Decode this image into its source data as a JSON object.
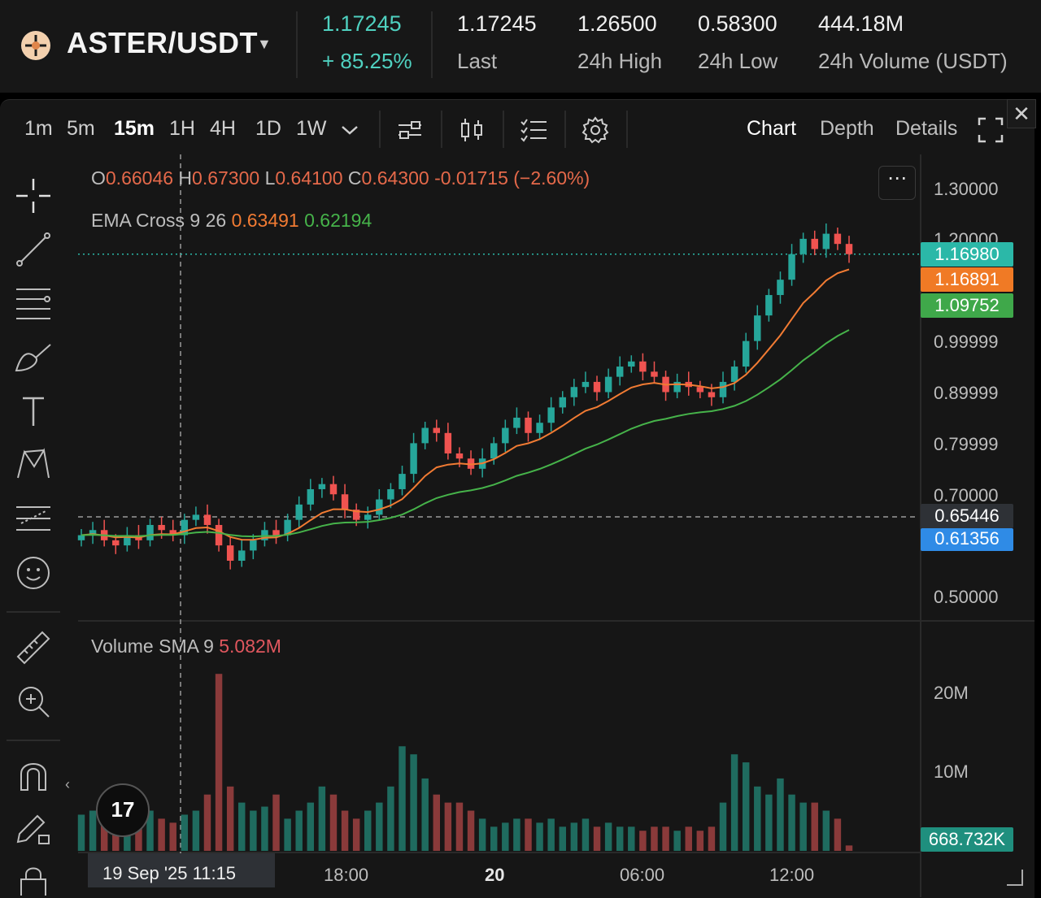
{
  "header": {
    "pair": "ASTER/USDT",
    "price": "1.17245",
    "change": "+ 85.25%",
    "stats": [
      {
        "value": "1.17245",
        "label": "Last"
      },
      {
        "value": "1.26500",
        "label": "24h High"
      },
      {
        "value": "0.58300",
        "label": "24h Low"
      },
      {
        "value": "444.18M",
        "label": "24h Volume (USDT)"
      }
    ]
  },
  "toolbar": {
    "timeframes": [
      "1m",
      "5m",
      "15m",
      "1H",
      "4H",
      "1D",
      "1W"
    ],
    "active_timeframe": "15m",
    "views": [
      "Chart",
      "Depth",
      "Details"
    ],
    "active_view": "Chart",
    "close": "✕"
  },
  "legend": {
    "o_label": "O",
    "o": "0.66046",
    "h_label": "H",
    "h": "0.67300",
    "l_label": "L",
    "l": "0.64100",
    "c_label": "C",
    "c": "0.64300",
    "change": "-0.01715 (−2.60%)",
    "ema_label": "EMA Cross 9 26",
    "ema_fast": "0.63491",
    "ema_slow": "0.62194",
    "volume_label": "Volume SMA 9",
    "volume_sma": "5.082M",
    "more": "⋯"
  },
  "price_axis": {
    "ticks": [
      "1.30000",
      "1.20000",
      "0.99999",
      "0.89999",
      "0.79999",
      "0.70000",
      "0.50000"
    ],
    "tags": [
      {
        "value": "1.16980",
        "color": "#2bb8a8"
      },
      {
        "value": "1.16891",
        "color": "#f07a25"
      },
      {
        "value": "1.09752",
        "color": "#3fa84a"
      },
      {
        "value": "0.65446",
        "color": "#2e3136"
      },
      {
        "value": "0.61356",
        "color": "#2f8be6"
      }
    ]
  },
  "volume_axis": {
    "ticks": [
      "20M",
      "10M"
    ],
    "tag": "668.732K"
  },
  "time_axis": {
    "selected": "19 Sep '25   11:15",
    "ticks": [
      {
        "label": "18:00",
        "bold": false
      },
      {
        "label": "20",
        "bold": true
      },
      {
        "label": "06:00",
        "bold": false
      },
      {
        "label": "12:00",
        "bold": false
      }
    ]
  },
  "tv_logo": "17",
  "colors": {
    "up": "#26a69a",
    "down": "#ef5350",
    "ema_fast": "#f17b33",
    "ema_slow": "#46b34a",
    "volume_up": "#1f6b5f",
    "volume_down": "#8a3a3a"
  },
  "chart_data": {
    "type": "candlestick",
    "price_range": [
      0.5,
      1.3
    ],
    "close_series": [
      0.62,
      0.63,
      0.61,
      0.6,
      0.62,
      0.61,
      0.64,
      0.63,
      0.62,
      0.65,
      0.66,
      0.64,
      0.6,
      0.57,
      0.59,
      0.61,
      0.63,
      0.62,
      0.65,
      0.68,
      0.71,
      0.72,
      0.7,
      0.67,
      0.65,
      0.66,
      0.69,
      0.71,
      0.74,
      0.8,
      0.83,
      0.82,
      0.78,
      0.77,
      0.75,
      0.77,
      0.8,
      0.83,
      0.85,
      0.82,
      0.84,
      0.87,
      0.89,
      0.91,
      0.92,
      0.9,
      0.93,
      0.95,
      0.96,
      0.94,
      0.93,
      0.9,
      0.92,
      0.91,
      0.9,
      0.89,
      0.92,
      0.95,
      1.0,
      1.05,
      1.09,
      1.12,
      1.17,
      1.2,
      1.18,
      1.21,
      1.19,
      1.17
    ],
    "volume_series_m": [
      4.5,
      5,
      4,
      3.5,
      4,
      6,
      5,
      4,
      3.5,
      4.5,
      5,
      7,
      22,
      8,
      6,
      5,
      5.5,
      7,
      4,
      5,
      6,
      8,
      7,
      5,
      4,
      5,
      6,
      8,
      13,
      12,
      9,
      7,
      6,
      6,
      5,
      4,
      3,
      3.5,
      4,
      4,
      3.5,
      4,
      3,
      3.5,
      4,
      3,
      3.5,
      3,
      3,
      2.5,
      3,
      3,
      2.5,
      3,
      2.5,
      3,
      6,
      12,
      11,
      8,
      7,
      9,
      7,
      6,
      6,
      5,
      4,
      0.67
    ]
  }
}
